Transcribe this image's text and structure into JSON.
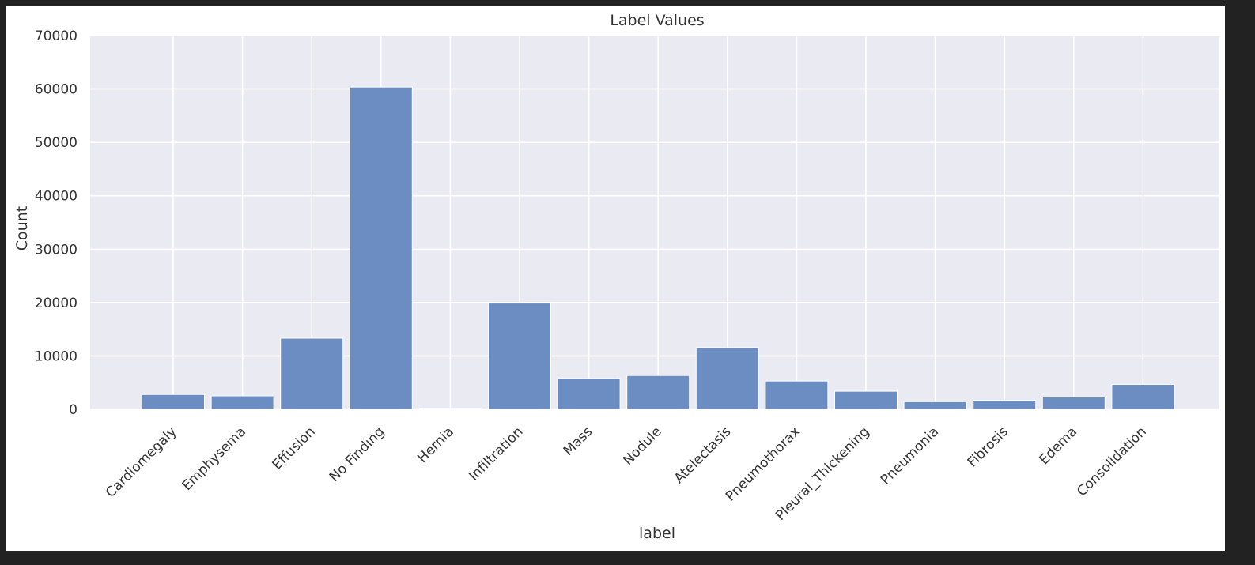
{
  "chart_data": {
    "type": "bar",
    "title": "Label Values",
    "xlabel": "label",
    "ylabel": "Count",
    "ylim": [
      0,
      70000
    ],
    "yticks": [
      "0",
      "10000",
      "20000",
      "30000",
      "40000",
      "50000",
      "60000",
      "70000"
    ],
    "grid": true,
    "categories": [
      "Cardiomegaly",
      "Emphysema",
      "Effusion",
      "No Finding",
      "Hernia",
      "Infiltration",
      "Mass",
      "Nodule",
      "Atelectasis",
      "Pneumothorax",
      "Pleural_Thickening",
      "Pneumonia",
      "Fibrosis",
      "Edema",
      "Consolidation"
    ],
    "values": [
      2776,
      2516,
      13317,
      60361,
      227,
      19894,
      5782,
      6331,
      11559,
      5302,
      3385,
      1431,
      1686,
      2303,
      4667
    ]
  },
  "colors": {
    "plot_background": "#eaeaf2",
    "bar": "#6c8dc1",
    "grid": "#ffffff"
  }
}
